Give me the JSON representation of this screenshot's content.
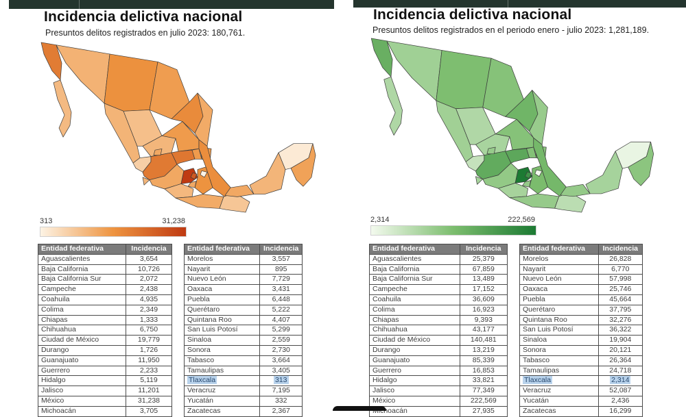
{
  "chrome": {
    "bar_color": "#24352e"
  },
  "panels": [
    {
      "title": "Incidencia delictiva nacional",
      "subtitle": "Presuntos delitos registrados en julio 2023: 180,761.",
      "scale": {
        "min_label": "313",
        "max_label": "31,238"
      },
      "table_headers": [
        "Entidad federativa",
        "Incidencia"
      ],
      "tables": [
        {
          "rows": [
            {
              "state": "Aguascalientes",
              "value": "3,654"
            },
            {
              "state": "Baja California",
              "value": "10,726"
            },
            {
              "state": "Baja California Sur",
              "value": "2,072"
            },
            {
              "state": "Campeche",
              "value": "2,438"
            },
            {
              "state": "Coahuila",
              "value": "4,935"
            },
            {
              "state": "Colima",
              "value": "2,349"
            },
            {
              "state": "Chiapas",
              "value": "1,333"
            },
            {
              "state": "Chihuahua",
              "value": "6,750"
            },
            {
              "state": "Ciudad de México",
              "value": "19,779"
            },
            {
              "state": "Durango",
              "value": "1,726"
            },
            {
              "state": "Guanajuato",
              "value": "11,950"
            },
            {
              "state": "Guerrero",
              "value": "2,233"
            },
            {
              "state": "Hidalgo",
              "value": "5,119"
            },
            {
              "state": "Jalisco",
              "value": "11,201"
            },
            {
              "state": "México",
              "value": "31,238"
            },
            {
              "state": "Michoacán",
              "value": "3,705"
            }
          ]
        },
        {
          "rows": [
            {
              "state": "Morelos",
              "value": "3,557"
            },
            {
              "state": "Nayarit",
              "value": "895"
            },
            {
              "state": "Nuevo León",
              "value": "7,729"
            },
            {
              "state": "Oaxaca",
              "value": "3,431"
            },
            {
              "state": "Puebla",
              "value": "6,448"
            },
            {
              "state": "Querétaro",
              "value": "5,222"
            },
            {
              "state": "Quintana Roo",
              "value": "4,407"
            },
            {
              "state": "San Luis Potosí",
              "value": "5,299"
            },
            {
              "state": "Sinaloa",
              "value": "2,559"
            },
            {
              "state": "Sonora",
              "value": "2,730"
            },
            {
              "state": "Tabasco",
              "value": "3,664"
            },
            {
              "state": "Tamaulipas",
              "value": "3,405"
            },
            {
              "state": "Tlaxcala",
              "value": "313",
              "highlight": true
            },
            {
              "state": "Veracruz",
              "value": "7,195"
            },
            {
              "state": "Yucatán",
              "value": "332"
            },
            {
              "state": "Zacatecas",
              "value": "2,367"
            }
          ]
        }
      ]
    },
    {
      "title": "Incidencia delictiva nacional",
      "subtitle": "Presuntos delitos registrados en el periodo enero - julio 2023: 1,281,189.",
      "scale": {
        "min_label": "2,314",
        "max_label": "222,569"
      },
      "table_headers": [
        "Entidad federativa",
        "Incidencia"
      ],
      "tables": [
        {
          "rows": [
            {
              "state": "Aguascalientes",
              "value": "25,379"
            },
            {
              "state": "Baja California",
              "value": "67,859"
            },
            {
              "state": "Baja California Sur",
              "value": "13,489"
            },
            {
              "state": "Campeche",
              "value": "17,152"
            },
            {
              "state": "Coahuila",
              "value": "36,609"
            },
            {
              "state": "Colima",
              "value": "16,923"
            },
            {
              "state": "Chiapas",
              "value": "9,393"
            },
            {
              "state": "Chihuahua",
              "value": "43,177"
            },
            {
              "state": "Ciudad de México",
              "value": "140,481"
            },
            {
              "state": "Durango",
              "value": "13,219"
            },
            {
              "state": "Guanajuato",
              "value": "85,339"
            },
            {
              "state": "Guerrero",
              "value": "16,853"
            },
            {
              "state": "Hidalgo",
              "value": "33,821"
            },
            {
              "state": "Jalisco",
              "value": "77,349"
            },
            {
              "state": "México",
              "value": "222,569"
            },
            {
              "state": "Michoacán",
              "value": "27,935"
            }
          ]
        },
        {
          "rows": [
            {
              "state": "Morelos",
              "value": "26,828"
            },
            {
              "state": "Nayarit",
              "value": "6,770"
            },
            {
              "state": "Nuevo León",
              "value": "57,998"
            },
            {
              "state": "Oaxaca",
              "value": "25,746"
            },
            {
              "state": "Puebla",
              "value": "45,664"
            },
            {
              "state": "Querétaro",
              "value": "37,795"
            },
            {
              "state": "Quintana Roo",
              "value": "32,276"
            },
            {
              "state": "San Luis Potosí",
              "value": "36,322"
            },
            {
              "state": "Sinaloa",
              "value": "19,904"
            },
            {
              "state": "Sonora",
              "value": "20,121"
            },
            {
              "state": "Tabasco",
              "value": "26,364"
            },
            {
              "state": "Tamaulipas",
              "value": "24,718"
            },
            {
              "state": "Tlaxcala",
              "value": "2,314",
              "highlight": true
            },
            {
              "state": "Veracruz",
              "value": "52,087"
            },
            {
              "state": "Yucatán",
              "value": "2,436"
            },
            {
              "state": "Zacatecas",
              "value": "16,299"
            }
          ]
        }
      ]
    }
  ],
  "chart_data": [
    {
      "type": "heatmap",
      "subtype": "choropleth-mexico",
      "title": "Incidencia delictiva nacional",
      "subtitle": "Presuntos delitos registrados en julio 2023: 180,761.",
      "legend": {
        "min": "313",
        "max": "31,238",
        "position": "below-map"
      },
      "range": [
        313,
        31238
      ],
      "colors": [
        "#fdf3e4",
        "#ee9440",
        "#bf3a12"
      ],
      "categories": [
        "Aguascalientes",
        "Baja California",
        "Baja California Sur",
        "Campeche",
        "Coahuila",
        "Colima",
        "Chiapas",
        "Chihuahua",
        "Ciudad de México",
        "Durango",
        "Guanajuato",
        "Guerrero",
        "Hidalgo",
        "Jalisco",
        "México",
        "Michoacán",
        "Morelos",
        "Nayarit",
        "Nuevo León",
        "Oaxaca",
        "Puebla",
        "Querétaro",
        "Quintana Roo",
        "San Luis Potosí",
        "Sinaloa",
        "Sonora",
        "Tabasco",
        "Tamaulipas",
        "Tlaxcala",
        "Veracruz",
        "Yucatán",
        "Zacatecas"
      ],
      "values": [
        3654,
        10726,
        2072,
        2438,
        4935,
        2349,
        1333,
        6750,
        19779,
        1726,
        11950,
        2233,
        5119,
        11201,
        31238,
        3705,
        3557,
        895,
        7729,
        3431,
        6448,
        5222,
        4407,
        5299,
        2559,
        2730,
        3664,
        3405,
        313,
        7195,
        332,
        2367
      ]
    },
    {
      "type": "heatmap",
      "subtype": "choropleth-mexico",
      "title": "Incidencia delictiva nacional",
      "subtitle": "Presuntos delitos registrados en el periodo enero - julio 2023: 1,281,189.",
      "legend": {
        "min": "2,314",
        "max": "222,569",
        "position": "below-map"
      },
      "range": [
        2314,
        222569
      ],
      "colors": [
        "#f3faee",
        "#7cbd6e",
        "#1c7a33"
      ],
      "categories": [
        "Aguascalientes",
        "Baja California",
        "Baja California Sur",
        "Campeche",
        "Coahuila",
        "Colima",
        "Chiapas",
        "Chihuahua",
        "Ciudad de México",
        "Durango",
        "Guanajuato",
        "Guerrero",
        "Hidalgo",
        "Jalisco",
        "México",
        "Michoacán",
        "Morelos",
        "Nayarit",
        "Nuevo León",
        "Oaxaca",
        "Puebla",
        "Querétaro",
        "Quintana Roo",
        "San Luis Potosí",
        "Sinaloa",
        "Sonora",
        "Tabasco",
        "Tamaulipas",
        "Tlaxcala",
        "Veracruz",
        "Yucatán",
        "Zacatecas"
      ],
      "values": [
        25379,
        67859,
        13489,
        17152,
        36609,
        16923,
        9393,
        43177,
        140481,
        13219,
        85339,
        16853,
        33821,
        77349,
        222569,
        27935,
        26828,
        6770,
        57998,
        25746,
        45664,
        37795,
        32276,
        36322,
        19904,
        20121,
        26364,
        24718,
        2314,
        52087,
        2436,
        16299
      ]
    }
  ]
}
